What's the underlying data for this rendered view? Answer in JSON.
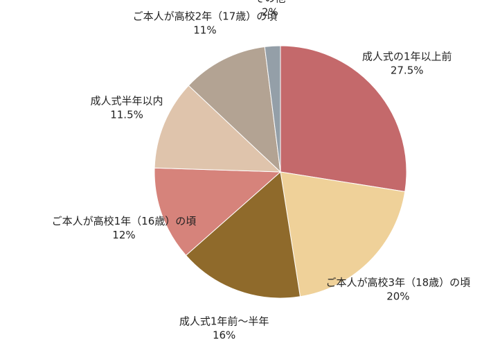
{
  "chart_data": {
    "type": "pie",
    "categories": [
      "成人式の1年以上前",
      "ご本人が高校3年（18歳）の頃",
      "成人式1年前～半年",
      "ご本人が高校1年（16歳）の頃",
      "成人式半年以内",
      "ご本人が高校2年（17歳）の頃",
      "その他"
    ],
    "values": [
      27.5,
      20,
      16,
      12,
      11.5,
      11,
      2
    ],
    "value_labels": [
      "27.5%",
      "20%",
      "16%",
      "12%",
      "11.5%",
      "11%",
      "2%"
    ],
    "colors": [
      "#c4696b",
      "#efd199",
      "#8f6a2b",
      "#d6837b",
      "#dfc4ac",
      "#b3a393",
      "#949fa8"
    ]
  }
}
